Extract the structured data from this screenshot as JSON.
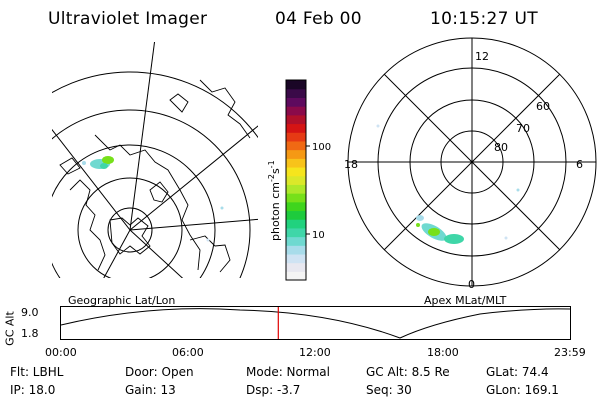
{
  "header": {
    "instrument": "Ultraviolet Imager",
    "date": "04 Feb 00",
    "time": "10:15:27 UT"
  },
  "geo_panel": {
    "caption": "Geographic Lat/Lon"
  },
  "apex_panel": {
    "caption": "Apex MLat/MLT",
    "mlt_labels": {
      "top": "12",
      "bottom": "0",
      "left": "18",
      "right": "6"
    },
    "lat_labels": [
      "60",
      "70",
      "80"
    ]
  },
  "colorbar": {
    "unit_main": "photon cm",
    "unit_exp1": "-2",
    "unit_s": "s",
    "unit_exp2": "-1",
    "tick_labels": [
      "100",
      "10"
    ],
    "colors": [
      "#f4f4f4",
      "#e8e8f0",
      "#cfe3f3",
      "#a8dcea",
      "#6fd9d0",
      "#3fd6a8",
      "#21d27e",
      "#1ecb3d",
      "#3fd51d",
      "#77e01a",
      "#aee82a",
      "#dbe82a",
      "#f6e51d",
      "#f8c31a",
      "#f59914",
      "#f06914",
      "#e63a14",
      "#d51414",
      "#b0102a",
      "#8a0a4a",
      "#5e0a5e",
      "#3a0a48",
      "#1a0626"
    ]
  },
  "timeline": {
    "gc_label": "GC Alt",
    "y_ticks": [
      "9.0",
      "1.8"
    ],
    "x_ticks": [
      "00:00",
      "06:00",
      "12:00",
      "18:00",
      "23:59"
    ],
    "current_time_fraction": 0.427,
    "marker_color": "#e00000"
  },
  "footer": {
    "filter": "Flt: LBHL",
    "ip": "IP: 18.0",
    "door": "Door: Open",
    "gain": "Gain: 13",
    "mode": "Mode: Normal",
    "dsp": "Dsp:    -3.7",
    "gc_alt": "GC Alt: 8.5 Re",
    "seq": "Seq: 30",
    "glat": "GLat:  74.4",
    "glon": "GLon: 169.1"
  }
}
